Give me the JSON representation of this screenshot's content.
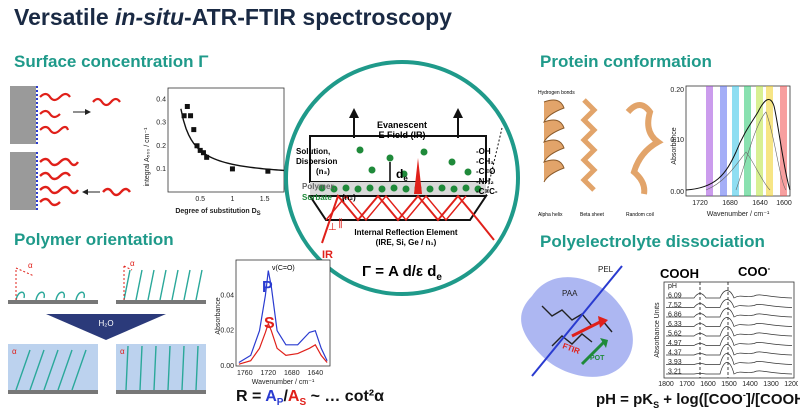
{
  "title": {
    "prefix": "Versatile ",
    "italic": "in-situ",
    "suffix": "-ATR-FTIR spectroscopy"
  },
  "sections": {
    "surface": "Surface concentration Γ",
    "protein": "Protein conformation",
    "polymer": "Polymer orientation",
    "polyelectrolyte": "Polyelectrolyte dissociation"
  },
  "surface_chart": {
    "ylabel": "integral A₅₀₀ / cm⁻¹",
    "xlabel": "Degree of substitution D",
    "xlabel_sub": "S",
    "xticks": [
      "0.5",
      "1",
      "1.5"
    ],
    "yticks": [
      "0.1",
      "0.2",
      "0.3",
      "0.4"
    ],
    "chart_data": {
      "type": "scatter",
      "x": [
        0.25,
        0.3,
        0.35,
        0.4,
        0.45,
        0.5,
        0.55,
        0.6,
        1.0,
        1.55
      ],
      "y": [
        0.33,
        0.37,
        0.33,
        0.27,
        0.2,
        0.18,
        0.17,
        0.15,
        0.1,
        0.09
      ],
      "xlim": [
        0,
        1.8
      ],
      "ylim": [
        0,
        0.45
      ]
    }
  },
  "center": {
    "evanescent": "Evanescent",
    "efield": "E Field (IR)",
    "solution": "Solution,",
    "dispersion": "Dispersion",
    "n3": "(n₃)",
    "de": "d",
    "de_sub": "e",
    "polymer": "Polymer,",
    "sorbate": "Sorbate",
    "n2": "(n₂)",
    "groups": [
      "-OH",
      "-CH₃",
      "-C=O",
      "-NH₂",
      "-C=C-"
    ],
    "ire1": "Internal Reflection Element",
    "ire2": "(IRE, Si, Ge / n₁)",
    "ir": "IR",
    "perp": "⊥",
    "par": "∥",
    "formula": "Γ = A d/ε d",
    "formula_sub": "e"
  },
  "protein_chart": {
    "ylabel": "Absorbance",
    "xlabel": "Wavenumber / cm⁻¹",
    "xticks": [
      "1720",
      "1680",
      "1640",
      "1600"
    ],
    "yticks": [
      "0.00",
      "0.10",
      "0.20"
    ],
    "structures": [
      "Alpha helix",
      "Beta sheet",
      "Random coil"
    ],
    "hbond": "Hydrogen bonds",
    "band_colors": [
      "#a04adf",
      "#5a6cf0",
      "#33c3e8",
      "#28c870",
      "#b8e33a",
      "#f0d020",
      "#f05050"
    ]
  },
  "polymer_chart": {
    "ylabel": "Absorbance",
    "xlabel": "Wavenumber / cm⁻¹",
    "xticks": [
      "1760",
      "1720",
      "1680",
      "1640"
    ],
    "yticks": [
      "0.00",
      "0.02",
      "0.04"
    ],
    "peak": "ν(C=O)",
    "p": "P",
    "s": "S",
    "h2o": "H₂O",
    "chart_data": {
      "type": "line",
      "x": [
        1770,
        1750,
        1735,
        1725,
        1720,
        1715,
        1705,
        1690,
        1670,
        1650,
        1640,
        1630,
        1620
      ],
      "series": [
        {
          "name": "P",
          "values": [
            0.002,
            0.006,
            0.02,
            0.04,
            0.054,
            0.045,
            0.02,
            0.012,
            0.012,
            0.019,
            0.02,
            0.01,
            0.003
          ]
        },
        {
          "name": "S",
          "values": [
            0.001,
            0.003,
            0.01,
            0.019,
            0.024,
            0.02,
            0.01,
            0.006,
            0.007,
            0.01,
            0.012,
            0.006,
            0.002
          ]
        }
      ],
      "xlim": [
        1775,
        1615
      ],
      "ylim": [
        0,
        0.06
      ]
    }
  },
  "polymer_formula": {
    "lead": "R = ",
    "ap": "A",
    "ap_sub": "P",
    "slash": "/",
    "as": "A",
    "as_sub": "S",
    "tail": " ~ … cot²α"
  },
  "alpha": "α",
  "pel": {
    "pel": "PEL",
    "paa": "PAA",
    "ftir": "FTIR",
    "pot": "POT",
    "cooh": "COOH",
    "coo": "COO",
    "coo_sup": "-",
    "ylabel": "Absorbance Units",
    "xticks": [
      "1800",
      "1700",
      "1600",
      "1500",
      "1400",
      "1300",
      "1200"
    ],
    "ph_values": [
      "pH",
      "6.09",
      "7.52",
      "6.86",
      "6.33",
      "5.62",
      "4.97",
      "4.37",
      "3.93",
      "3.21"
    ],
    "formula_lead": "pH = pK",
    "formula_sub": "S",
    "formula_tail": " + log([COO",
    "formula_sup": "-",
    "formula_end": "]/[COOH])"
  }
}
